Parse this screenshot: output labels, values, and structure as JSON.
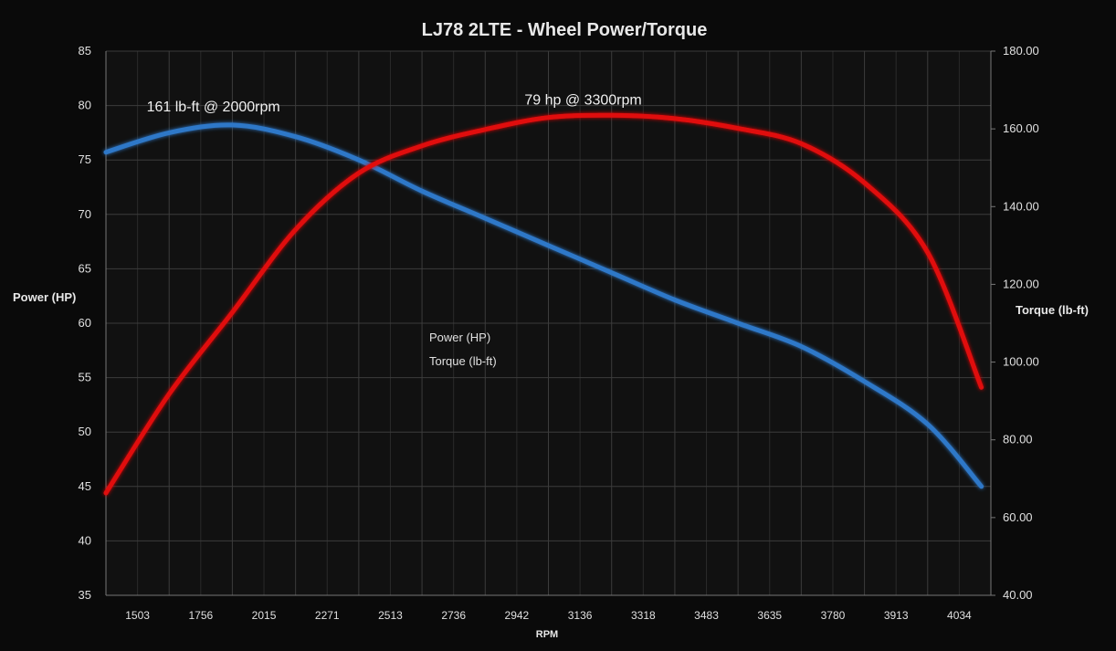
{
  "chart_data": {
    "type": "line",
    "title": "LJ78 2LTE - Wheel Power/Torque",
    "xlabel": "RPM",
    "ylabel_left": "Power (HP)",
    "ylabel_right": "Torque (lb-ft)",
    "x_tick_labels": [
      "1503",
      "1756",
      "2015",
      "2271",
      "2513",
      "2736",
      "2942",
      "3136",
      "3318",
      "3483",
      "3635",
      "3780",
      "3913",
      "4034"
    ],
    "y_left_ticks": [
      35,
      40,
      45,
      50,
      55,
      60,
      65,
      70,
      75,
      80,
      85
    ],
    "y_right_ticks": [
      "40.00",
      "60.00",
      "80.00",
      "100.00",
      "120.00",
      "140.00",
      "160.00",
      "180.00"
    ],
    "ylim_left": [
      35,
      85
    ],
    "ylim_right": [
      40,
      180
    ],
    "grid": true,
    "legend_placement": "center",
    "series": [
      {
        "name": "Power (HP)",
        "axis": "left",
        "color": "#e01010",
        "tick_index": [
          0,
          1,
          2,
          3,
          4,
          5,
          6,
          7,
          8,
          9,
          10,
          11,
          12,
          13,
          13.85
        ],
        "values": [
          44.4,
          53.5,
          61.0,
          68.6,
          73.8,
          76.3,
          77.8,
          78.9,
          79.1,
          78.8,
          77.9,
          76.5,
          72.9,
          66.5,
          54.1
        ]
      },
      {
        "name": "Torque (lb-ft)",
        "axis": "right",
        "color": "#2f78c8",
        "tick_index": [
          0,
          1,
          2,
          3,
          4,
          5,
          6,
          7,
          8,
          9,
          10,
          11,
          12,
          13,
          13.85
        ],
        "values": [
          154,
          159,
          161,
          158,
          152,
          144,
          137,
          130,
          123,
          116,
          110,
          104,
          95,
          84,
          68
        ]
      }
    ],
    "annotations": [
      {
        "text": "161 lb-ft @ 2000rpm",
        "tick_index": 1.7,
        "axis": "right",
        "value": 164.5
      },
      {
        "text": "79 hp @ 3300rpm",
        "tick_index": 7.55,
        "axis": "left",
        "value": 80.1
      }
    ]
  }
}
